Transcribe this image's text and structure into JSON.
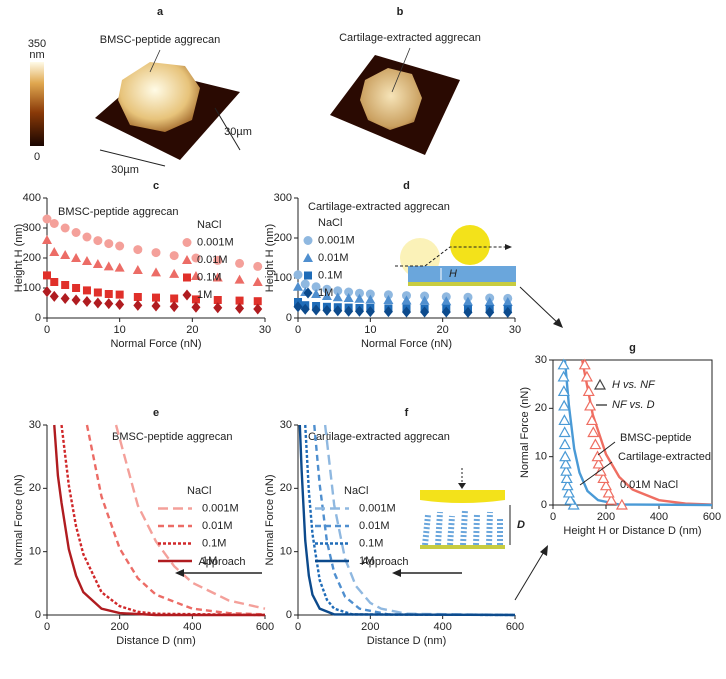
{
  "images": [
    {
      "label": "a",
      "caption": "BMSC-peptide aggrecan"
    },
    {
      "label": "b",
      "caption": "Cartilage-extracted aggrecan"
    }
  ],
  "colorbar": {
    "max": "350",
    "unit": "nm",
    "min": "0"
  },
  "scale_labels": [
    "30µm",
    "30µm"
  ],
  "chart_data": [
    {
      "type": "scatter",
      "label": "c",
      "subtitle": "BMSC-peptide aggrecan",
      "xlabel": "Normal Force (nN)",
      "ylabel": "Height H (nm)",
      "xlim": [
        0,
        30
      ],
      "xticks": [
        0,
        10,
        20,
        30
      ],
      "ylim": [
        0,
        400
      ],
      "yticks": [
        0,
        100,
        200,
        300,
        400
      ],
      "legend_title": "NaCl",
      "x": [
        0,
        1,
        2.5,
        4,
        5.5,
        7,
        8.5,
        10,
        12.5,
        15,
        17.5,
        20.5,
        23.5,
        26.5,
        29
      ],
      "series": [
        {
          "name": "0.001M",
          "color": "#f4a09a",
          "marker": "circle",
          "values": [
            330,
            315,
            300,
            285,
            270,
            258,
            248,
            240,
            228,
            218,
            208,
            200,
            192,
            182,
            172
          ]
        },
        {
          "name": "0.01M",
          "color": "#ec6c66",
          "marker": "triangle",
          "values": [
            260,
            220,
            210,
            200,
            190,
            180,
            172,
            168,
            160,
            152,
            147,
            140,
            135,
            128,
            120
          ]
        },
        {
          "name": "0.1M",
          "color": "#e0302a",
          "marker": "square",
          "values": [
            142,
            120,
            110,
            100,
            92,
            85,
            80,
            78,
            70,
            68,
            65,
            62,
            60,
            58,
            56
          ]
        },
        {
          "name": "1M",
          "color": "#b01c20",
          "marker": "diamond",
          "values": [
            88,
            72,
            65,
            60,
            55,
            50,
            48,
            45,
            42,
            40,
            38,
            36,
            34,
            32,
            30
          ]
        }
      ]
    },
    {
      "type": "scatter",
      "label": "d",
      "subtitle": "Cartilage-extracted aggrecan",
      "xlabel": "Normal Force (nN)",
      "ylabel": "Height H (nm)",
      "xlim": [
        0,
        30
      ],
      "xticks": [
        0,
        10,
        20,
        30
      ],
      "ylim": [
        0,
        300
      ],
      "yticks": [
        0,
        100,
        200,
        300
      ],
      "legend_title": "NaCl",
      "inset_label": "H",
      "x": [
        0,
        1,
        2.5,
        4,
        5.5,
        7,
        8.5,
        10,
        12.5,
        15,
        17.5,
        20.5,
        23.5,
        26.5,
        29
      ],
      "series": [
        {
          "name": "0.001M",
          "color": "#8fb8e0",
          "marker": "circle",
          "values": [
            108,
            85,
            78,
            72,
            68,
            65,
            62,
            60,
            58,
            56,
            55,
            53,
            52,
            50,
            49
          ]
        },
        {
          "name": "0.01M",
          "color": "#4f8fcf",
          "marker": "triangle",
          "values": [
            78,
            65,
            60,
            55,
            52,
            50,
            48,
            46,
            45,
            44,
            43,
            42,
            41,
            40,
            40
          ]
        },
        {
          "name": "0.1M",
          "color": "#1f6cb8",
          "marker": "square",
          "values": [
            40,
            32,
            30,
            28,
            27,
            26,
            25,
            25,
            24,
            24,
            23,
            23,
            22,
            22,
            22
          ]
        },
        {
          "name": "1M",
          "color": "#0c4a8c",
          "marker": "diamond",
          "values": [
            28,
            22,
            20,
            19,
            18,
            17,
            17,
            16,
            16,
            15,
            15,
            15,
            14,
            14,
            14
          ]
        }
      ]
    },
    {
      "type": "line",
      "label": "e",
      "subtitle": "BMSC-peptide aggrecan",
      "xlabel": "Distance D (nm)",
      "ylabel": "Normal Force (nN)",
      "xlim": [
        0,
        600
      ],
      "xticks": [
        0,
        200,
        400,
        600
      ],
      "ylim": [
        0,
        30
      ],
      "yticks": [
        0,
        10,
        20,
        30
      ],
      "legend_title": "NaCl",
      "annotation": "Approach",
      "series": [
        {
          "name": "0.001M",
          "color": "#f4a09a",
          "dash": "long",
          "x": [
            190,
            250,
            300,
            350,
            400,
            500,
            600
          ],
          "values": [
            30,
            17.3,
            11.6,
            7.7,
            5.1,
            2.3,
            1.0
          ]
        },
        {
          "name": "0.01M",
          "color": "#ec6c66",
          "dash": "medium",
          "x": [
            110,
            150,
            200,
            250,
            300,
            400,
            500,
            600
          ],
          "values": [
            30,
            18.7,
            10.5,
            5.8,
            3.2,
            1.0,
            0.3,
            0.1
          ]
        },
        {
          "name": "0.1M",
          "color": "#d0282a",
          "dash": "short",
          "x": [
            40,
            60,
            80,
            100,
            150,
            200,
            250,
            300,
            600
          ],
          "values": [
            30,
            20.5,
            14.0,
            9.6,
            3.6,
            1.4,
            0.5,
            0.2,
            0
          ]
        },
        {
          "name": "1M",
          "color": "#b01c20",
          "dash": "solid",
          "x": [
            20,
            30,
            40,
            60,
            80,
            100,
            150,
            200,
            300,
            600
          ],
          "values": [
            30,
            22,
            17.7,
            10.4,
            6.2,
            3.6,
            1.0,
            0.3,
            0,
            0
          ]
        }
      ]
    },
    {
      "type": "line",
      "label": "f",
      "subtitle": "Cartilage-extracted aggrecan",
      "xlabel": "Distance D (nm)",
      "ylabel": "Normal Force (nN)",
      "xlim": [
        0,
        600
      ],
      "xticks": [
        0,
        200,
        400,
        600
      ],
      "ylim": [
        0,
        30
      ],
      "yticks": [
        0,
        10,
        20,
        30
      ],
      "legend_title": "NaCl",
      "annotation": "Approach",
      "inset_label": "D",
      "series": [
        {
          "name": "0.001M",
          "color": "#8fb8e0",
          "dash": "long",
          "x": [
            75,
            100,
            130,
            160,
            200,
            230,
            300,
            600
          ],
          "values": [
            30,
            17.4,
            8.9,
            4.6,
            1.9,
            1.0,
            0.2,
            0
          ]
        },
        {
          "name": "0.01M",
          "color": "#4f8fcf",
          "dash": "medium",
          "x": [
            45,
            60,
            80,
            100,
            130,
            170,
            250,
            600
          ],
          "values": [
            30,
            20.6,
            11.6,
            6.7,
            2.9,
            1.0,
            0.1,
            0
          ]
        },
        {
          "name": "0.1M",
          "color": "#1f6cb8",
          "dash": "short",
          "x": [
            20,
            30,
            40,
            60,
            80,
            100,
            150,
            600
          ],
          "values": [
            30,
            19.6,
            12.8,
            5.5,
            2.4,
            1.0,
            0.1,
            0
          ]
        },
        {
          "name": "1M",
          "color": "#0c4a8c",
          "dash": "solid",
          "x": [
            5,
            10,
            20,
            30,
            40,
            60,
            100,
            600
          ],
          "values": [
            30,
            22.9,
            11.8,
            6.2,
            3.2,
            1.0,
            0.1,
            0
          ]
        }
      ]
    },
    {
      "type": "scatter",
      "label": "g",
      "xlabel": "Height H or Distance D  (nm)",
      "ylabel": "Normal Force (nN)",
      "xlim": [
        0,
        600
      ],
      "xticks": [
        0,
        200,
        400,
        600
      ],
      "ylim": [
        0,
        30
      ],
      "yticks": [
        0,
        10,
        20,
        30
      ],
      "box": true,
      "legend": [
        {
          "label": "H vs. NF",
          "marker": "triangle"
        },
        {
          "label": "NF vs. D",
          "dash": "solid"
        }
      ],
      "annotations": [
        "BMSC-peptide",
        "Cartilage-extracted",
        "0.01M NaCl"
      ],
      "series": [
        {
          "color": "#ef6e62",
          "dash": "solid",
          "x": [
            110,
            150,
            200,
            250,
            300,
            400,
            500,
            600
          ],
          "values": [
            30,
            18.7,
            10.5,
            5.8,
            3.2,
            1.0,
            0.3,
            0.1
          ]
        },
        {
          "color": "#4a9ad6",
          "dash": "solid",
          "x": [
            45,
            60,
            80,
            100,
            130,
            170,
            250,
            600
          ],
          "values": [
            30,
            20.6,
            11.6,
            6.7,
            2.9,
            1.0,
            0.1,
            0
          ]
        },
        {
          "color": "#ef6e62",
          "marker": "triangle",
          "hollow": true,
          "x": [
            260,
            220,
            210,
            200,
            190,
            180,
            172,
            168,
            160,
            152,
            147,
            140,
            135,
            128,
            120
          ],
          "values": [
            0,
            1,
            2.5,
            4,
            5.5,
            7,
            8.5,
            10,
            12.5,
            15,
            17.5,
            20.5,
            23.5,
            26.5,
            29
          ]
        },
        {
          "color": "#4a9ad6",
          "marker": "triangle",
          "hollow": true,
          "x": [
            78,
            65,
            60,
            55,
            52,
            50,
            48,
            46,
            45,
            44,
            43,
            42,
            41,
            40,
            40
          ],
          "values": [
            0,
            1,
            2.5,
            4,
            5.5,
            7,
            8.5,
            10,
            12.5,
            15,
            17.5,
            20.5,
            23.5,
            26.5,
            29
          ]
        }
      ]
    }
  ]
}
